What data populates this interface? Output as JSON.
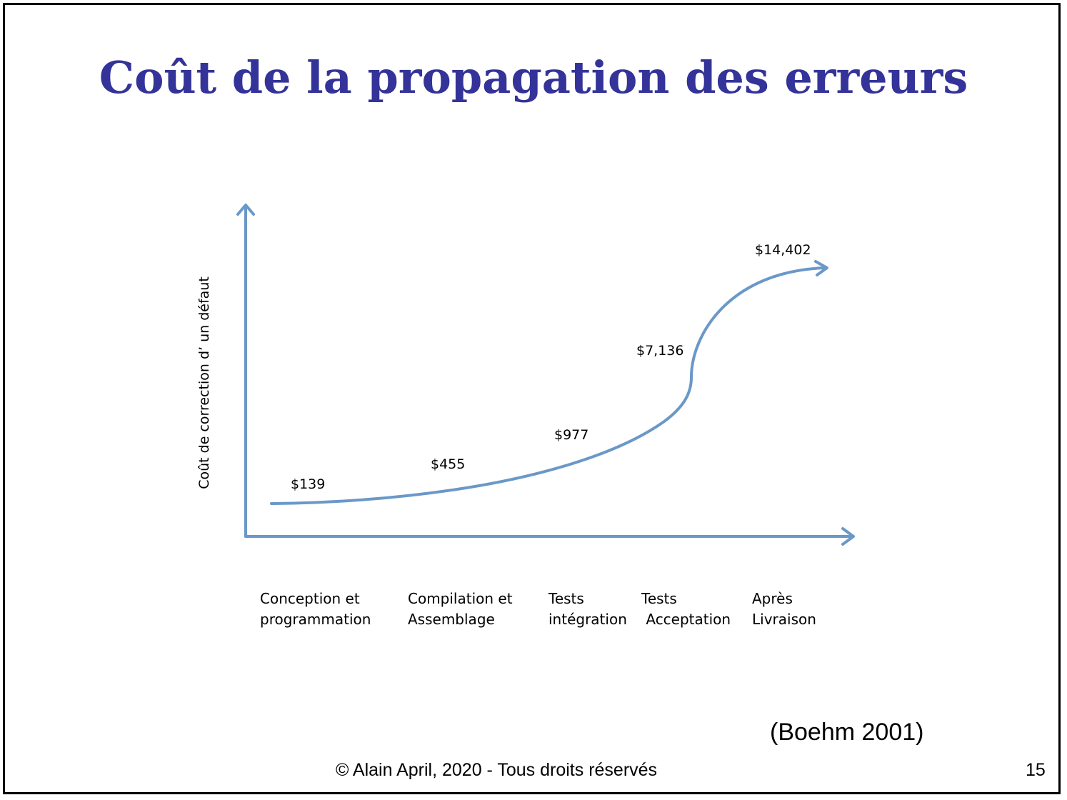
{
  "slide": {
    "title": "Coût de la propagation des erreurs",
    "source": "(Boehm 2001)",
    "footer": "© Alain April, 2020 - Tous droits réservés",
    "page_number": "15",
    "title_color": "#333399",
    "line_color": "#6a98c8"
  },
  "chart_data": {
    "type": "line",
    "title": "",
    "xlabel": "",
    "ylabel": "Coût de correction d’ un défaut",
    "categories": [
      "Conception et\nprogrammation",
      "Compilation et\nAssemblage",
      "Tests\nintégration",
      "Tests\n Acceptation",
      "Après\nLivraison"
    ],
    "values": [
      139,
      455,
      977,
      7136,
      14402
    ],
    "data_labels": [
      "$139",
      "$455",
      "$977",
      "$7,136",
      "$14,402"
    ],
    "grid": false,
    "legend": "none"
  }
}
